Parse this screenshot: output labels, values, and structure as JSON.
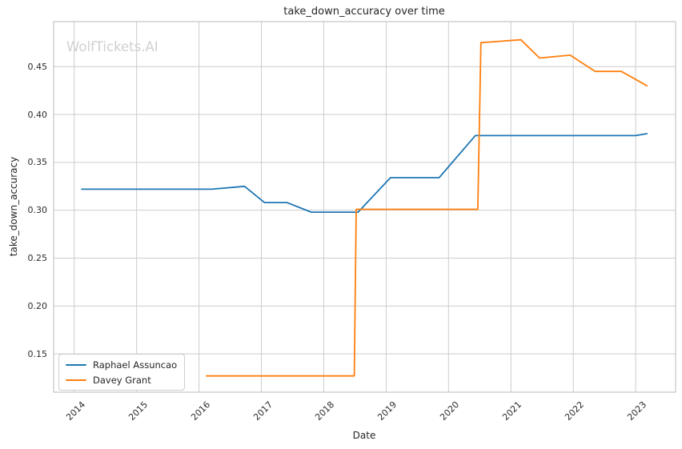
{
  "chart_data": {
    "type": "line",
    "title": "take_down_accuracy over time",
    "xlabel": "Date",
    "ylabel": "take_down_accuracy",
    "watermark": "WolfTickets.AI",
    "grid": true,
    "legend_position": "lower left",
    "xlim": [
      2013.67,
      2023.64
    ],
    "ylim": [
      0.11,
      0.497
    ],
    "x_ticks": [
      2014,
      2015,
      2016,
      2017,
      2018,
      2019,
      2020,
      2021,
      2022,
      2023
    ],
    "y_ticks": [
      0.15,
      0.2,
      0.25,
      0.3,
      0.35,
      0.4,
      0.45
    ],
    "series": [
      {
        "name": "Raphael Assuncao",
        "color": "#1f77b4",
        "points": [
          [
            2014.12,
            0.322
          ],
          [
            2016.2,
            0.322
          ],
          [
            2016.73,
            0.325
          ],
          [
            2017.05,
            0.308
          ],
          [
            2017.41,
            0.308
          ],
          [
            2017.8,
            0.298
          ],
          [
            2018.55,
            0.298
          ],
          [
            2019.07,
            0.334
          ],
          [
            2019.85,
            0.334
          ],
          [
            2020.43,
            0.378
          ],
          [
            2023.0,
            0.378
          ],
          [
            2023.18,
            0.38
          ]
        ]
      },
      {
        "name": "Davey Grant",
        "color": "#ff7f0e",
        "points": [
          [
            2016.12,
            0.127
          ],
          [
            2018.49,
            0.127
          ],
          [
            2018.52,
            0.301
          ],
          [
            2020.47,
            0.301
          ],
          [
            2020.52,
            0.475
          ],
          [
            2021.16,
            0.478
          ],
          [
            2021.46,
            0.459
          ],
          [
            2021.95,
            0.462
          ],
          [
            2022.35,
            0.445
          ],
          [
            2022.77,
            0.445
          ],
          [
            2023.18,
            0.43
          ]
        ]
      }
    ],
    "colors": {
      "grid": "#cccccc",
      "spine": "#c4c4c4",
      "background": "#ffffff"
    }
  }
}
